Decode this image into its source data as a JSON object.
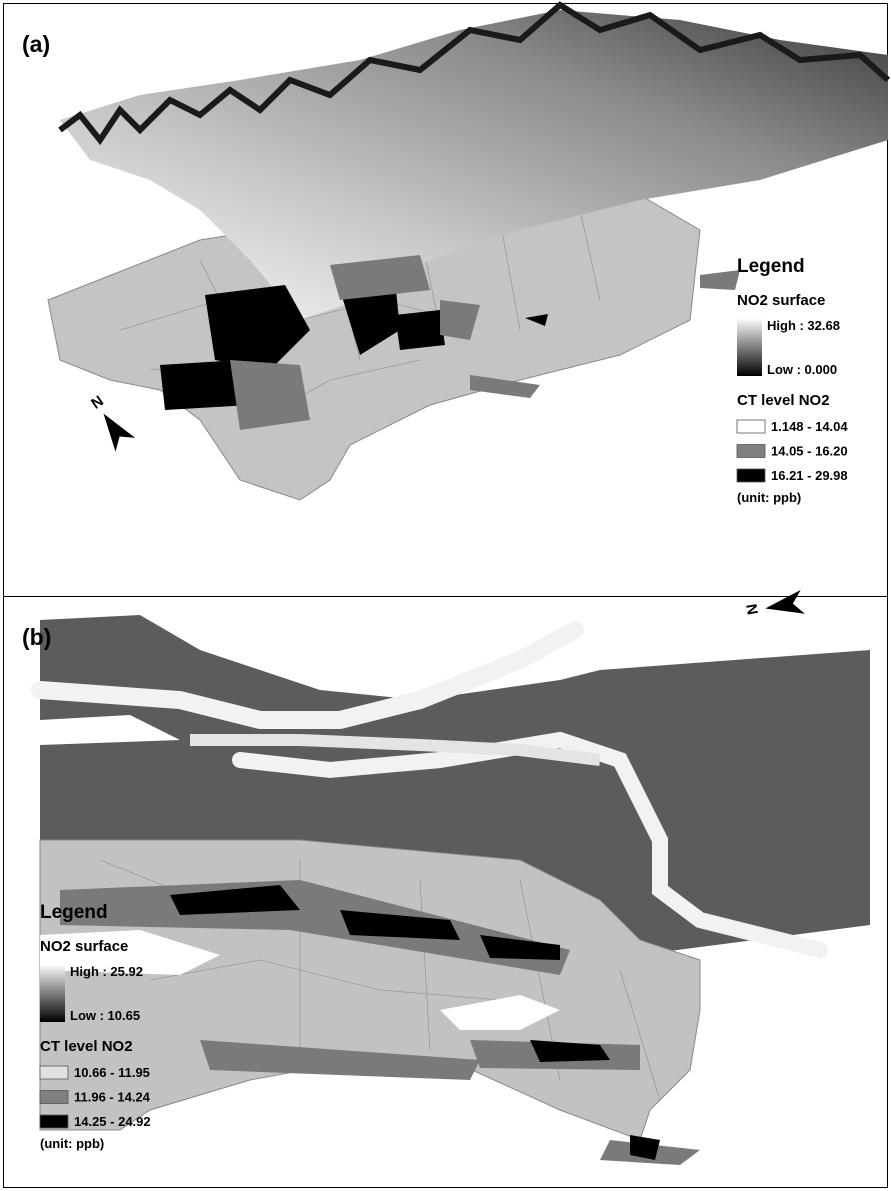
{
  "panels": [
    {
      "label": "(a)",
      "north": "N",
      "legend": {
        "title": "Legend",
        "surface_title": "NO2 surface",
        "surface_high": "High : 32.68",
        "surface_low": "Low : 0.000",
        "ct_title": "CT level NO2",
        "classes": [
          {
            "label": "1.148 - 14.04",
            "color": "#ffffff"
          },
          {
            "label": "14.05 - 16.20",
            "color": "#808080"
          },
          {
            "label": "16.21 - 29.98",
            "color": "#000000"
          }
        ],
        "unit": "(unit: ppb)"
      }
    },
    {
      "label": "(b)",
      "north": "N",
      "legend": {
        "title": "Legend",
        "surface_title": "NO2 surface",
        "surface_high": "High : 25.92",
        "surface_low": "Low : 10.65",
        "ct_title": "CT level NO2",
        "classes": [
          {
            "label": "10.66 - 11.95",
            "color": "#e0e0e0"
          },
          {
            "label": "11.96 - 14.24",
            "color": "#808080"
          },
          {
            "label": "14.25 - 24.92",
            "color": "#000000"
          }
        ],
        "unit": "(unit: ppb)"
      }
    }
  ]
}
